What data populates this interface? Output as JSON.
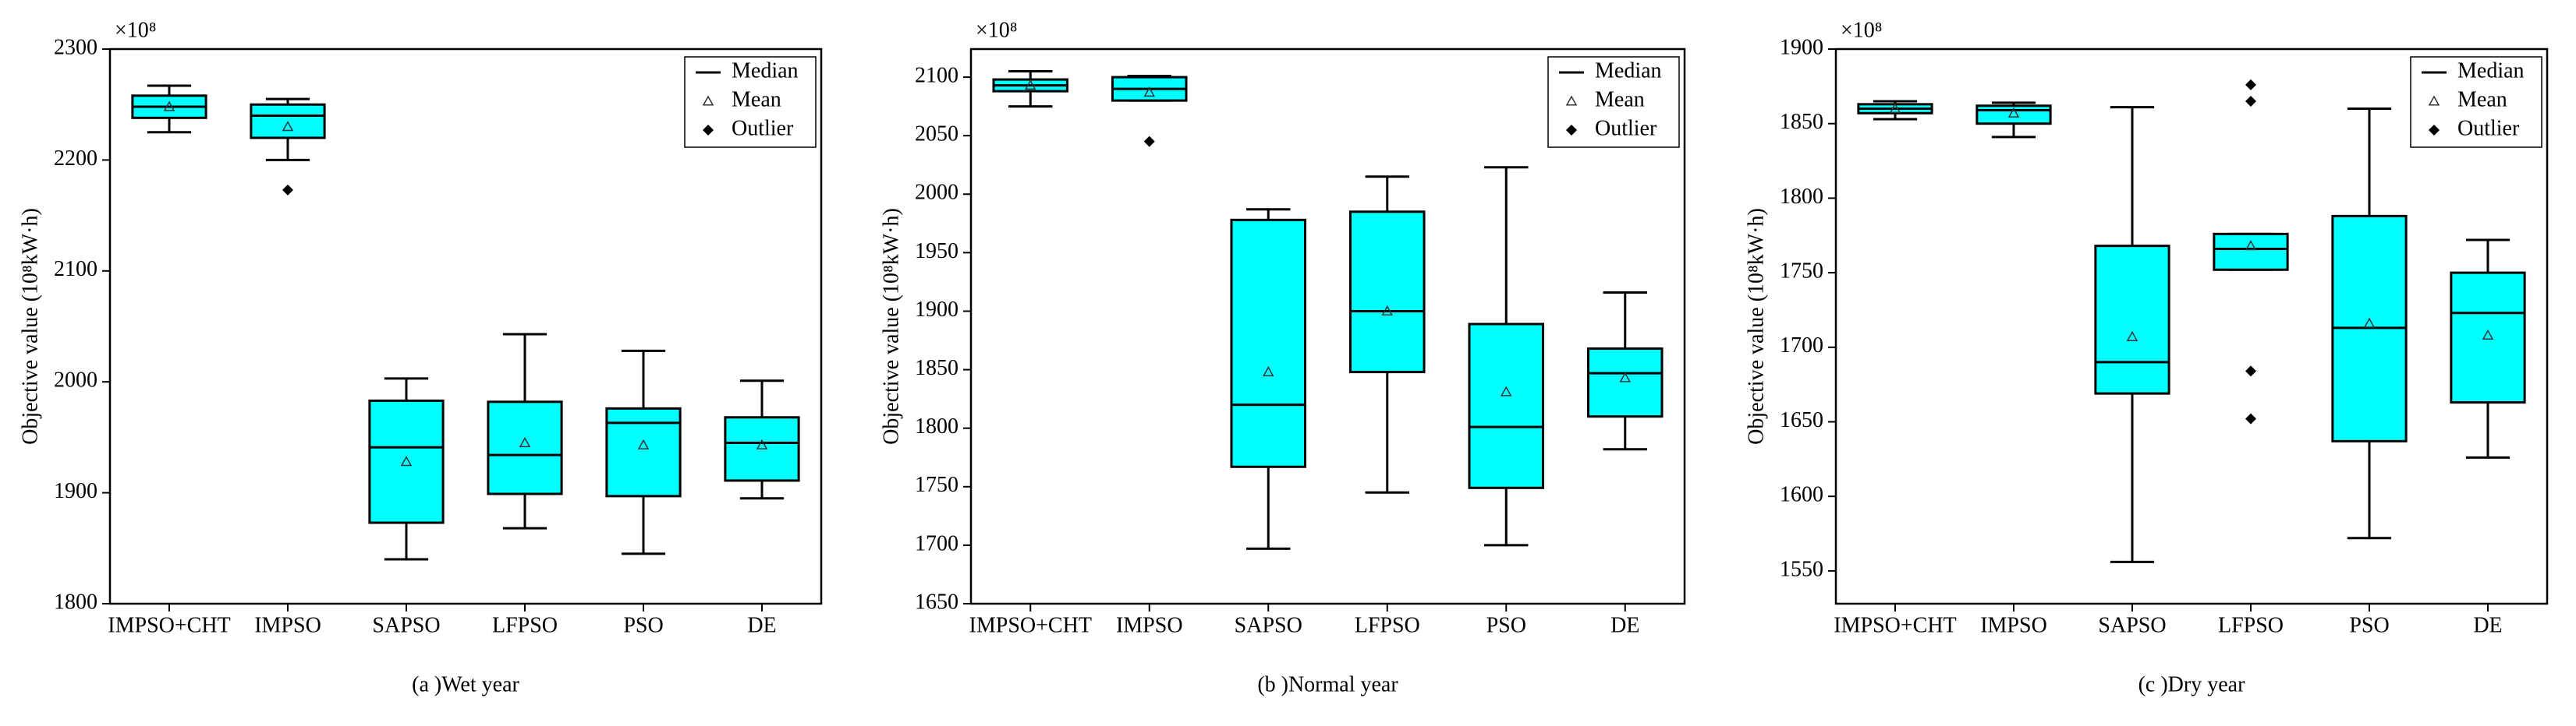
{
  "chart_data": [
    {
      "type": "box",
      "title": "(a )Wet year",
      "ylabel": "Objective value (10⁸kW·h)",
      "offset_label": "×10⁸",
      "categories": [
        "IMPSO+CHT",
        "IMPSO",
        "SAPSO",
        "LFPSO",
        "PSO",
        "DE"
      ],
      "color": "#00ffff",
      "legend": [
        "Median",
        "Mean",
        "Outlier"
      ],
      "ylim": [
        1800,
        2300
      ],
      "yticks": [
        1800,
        1900,
        2000,
        2100,
        2200,
        2300
      ],
      "boxes": [
        {
          "min": 2225,
          "q1": 2238,
          "median": 2248,
          "q3": 2258,
          "max": 2267,
          "mean": 2248,
          "outliers": []
        },
        {
          "min": 2200,
          "q1": 2220,
          "median": 2240,
          "q3": 2250,
          "max": 2255,
          "mean": 2230,
          "outliers": [
            2173
          ]
        },
        {
          "min": 1840,
          "q1": 1873,
          "median": 1941,
          "q3": 1983,
          "max": 2003,
          "mean": 1928,
          "outliers": []
        },
        {
          "min": 1868,
          "q1": 1899,
          "median": 1934,
          "q3": 1982,
          "max": 2043,
          "mean": 1945,
          "outliers": []
        },
        {
          "min": 1845,
          "q1": 1897,
          "median": 1963,
          "q3": 1976,
          "max": 2028,
          "mean": 1943,
          "outliers": []
        },
        {
          "min": 1895,
          "q1": 1911,
          "median": 1945,
          "q3": 1968,
          "max": 2001,
          "mean": 1943,
          "outliers": []
        }
      ]
    },
    {
      "type": "box",
      "title": "(b )Normal year",
      "ylabel": "Objective value (10⁸kW·h)",
      "offset_label": "×10⁸",
      "categories": [
        "IMPSO+CHT",
        "IMPSO",
        "SAPSO",
        "LFPSO",
        "PSO",
        "DE"
      ],
      "color": "#00ffff",
      "legend": [
        "Median",
        "Mean",
        "Outlier"
      ],
      "ylim": [
        1650,
        2124
      ],
      "yticks": [
        1650,
        1700,
        1750,
        1800,
        1850,
        1900,
        1950,
        2000,
        2050,
        2100
      ],
      "boxes": [
        {
          "min": 2075,
          "q1": 2088,
          "median": 2093,
          "q3": 2098,
          "max": 2105,
          "mean": 2093,
          "outliers": []
        },
        {
          "min": 2080,
          "q1": 2080,
          "median": 2090,
          "q3": 2100,
          "max": 2101,
          "mean": 2087,
          "outliers": [
            2045
          ]
        },
        {
          "min": 1697,
          "q1": 1767,
          "median": 1820,
          "q3": 1978,
          "max": 1987,
          "mean": 1848,
          "outliers": []
        },
        {
          "min": 1745,
          "q1": 1848,
          "median": 1900,
          "q3": 1985,
          "max": 2015,
          "mean": 1900,
          "outliers": []
        },
        {
          "min": 1700,
          "q1": 1749,
          "median": 1801,
          "q3": 1889,
          "max": 2023,
          "mean": 1831,
          "outliers": []
        },
        {
          "min": 1782,
          "q1": 1810,
          "median": 1847,
          "q3": 1868,
          "max": 1916,
          "mean": 1843,
          "outliers": []
        }
      ]
    },
    {
      "type": "box",
      "title": "(c )Dry year",
      "ylabel": "Objective value (10⁸kW·h)",
      "offset_label": "×10⁸",
      "categories": [
        "IMPSO+CHT",
        "IMPSO",
        "SAPSO",
        "LFPSO",
        "PSO",
        "DE"
      ],
      "color": "#00ffff",
      "legend": [
        "Median",
        "Mean",
        "Outlier"
      ],
      "ylim": [
        1528,
        1900
      ],
      "yticks": [
        1550,
        1600,
        1650,
        1700,
        1750,
        1800,
        1850,
        1900
      ],
      "boxes": [
        {
          "min": 1853,
          "q1": 1857,
          "median": 1860,
          "q3": 1863,
          "max": 1865,
          "mean": 1860,
          "outliers": []
        },
        {
          "min": 1841,
          "q1": 1850,
          "median": 1859,
          "q3": 1862,
          "max": 1864,
          "mean": 1857,
          "outliers": []
        },
        {
          "min": 1556,
          "q1": 1669,
          "median": 1690,
          "q3": 1768,
          "max": 1861,
          "mean": 1707,
          "outliers": []
        },
        {
          "min": 1752,
          "q1": 1752,
          "median": 1766,
          "q3": 1776,
          "max": 1776,
          "mean": 1768,
          "outliers": [
            1876,
            1865,
            1684,
            1652
          ]
        },
        {
          "min": 1572,
          "q1": 1637,
          "median": 1713,
          "q3": 1788,
          "max": 1860,
          "mean": 1716,
          "outliers": []
        },
        {
          "min": 1626,
          "q1": 1663,
          "median": 1723,
          "q3": 1750,
          "max": 1772,
          "mean": 1708,
          "outliers": []
        }
      ]
    }
  ]
}
